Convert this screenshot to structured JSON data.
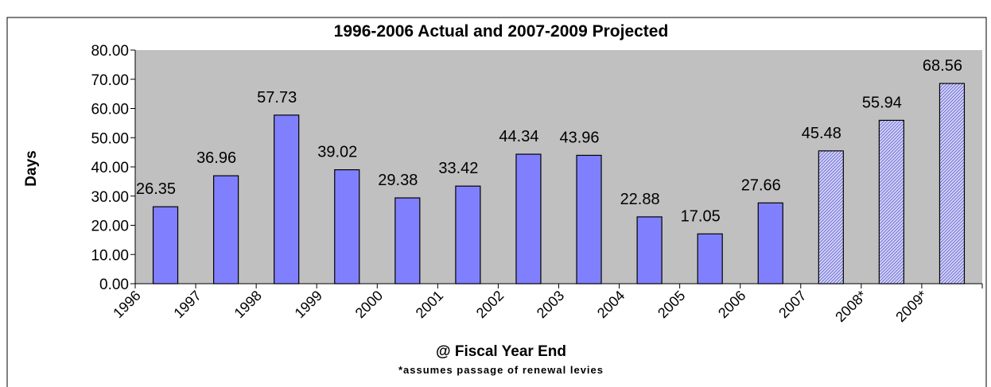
{
  "chart_data": {
    "type": "bar",
    "title": "1996-2006 Actual and 2007-2009 Projected",
    "xlabel": "@ Fiscal Year End",
    "ylabel": "Days",
    "footnote": "*assumes passage of renewal levies",
    "ylim": [
      0,
      80
    ],
    "y_ticks": [
      "0.00",
      "10.00",
      "20.00",
      "30.00",
      "40.00",
      "50.00",
      "60.00",
      "70.00",
      "80.00"
    ],
    "tick_labels": [
      "1996",
      "1997",
      "1998",
      "1999",
      "2000",
      "2001",
      "2002",
      "2003",
      "2004",
      "2005",
      "2006",
      "2007",
      "2008*",
      "2009*"
    ],
    "values": [
      26.35,
      36.96,
      57.73,
      39.02,
      29.38,
      33.42,
      44.34,
      43.96,
      22.88,
      17.05,
      27.66,
      45.48,
      55.94,
      68.56
    ],
    "value_labels": [
      "26.35",
      "36.96",
      "57.73",
      "39.02",
      "29.38",
      "33.42",
      "44.34",
      "43.96",
      "22.88",
      "17.05",
      "27.66",
      "45.48",
      "55.94",
      "68.56"
    ],
    "projected": [
      false,
      false,
      false,
      false,
      false,
      false,
      false,
      false,
      false,
      false,
      false,
      true,
      true,
      true
    ],
    "grid": false,
    "legend": "none",
    "colors": {
      "actual_bar": "#8080ff",
      "projected_bar": "#ccccff",
      "plot_background": "#c0c0c0",
      "bar_outline": "#000000"
    }
  }
}
